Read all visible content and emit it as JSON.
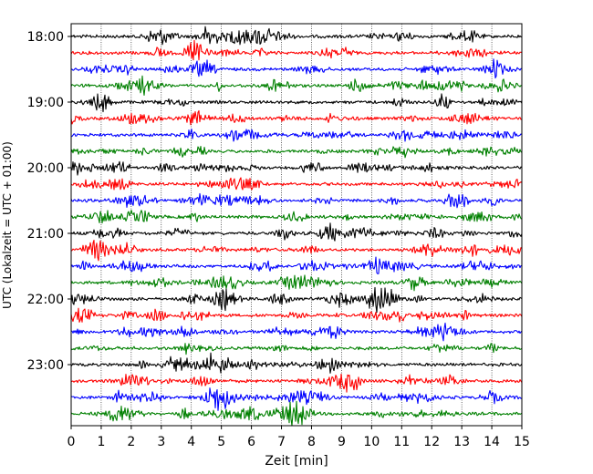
{
  "chart_data": {
    "type": "line",
    "title": "",
    "xlabel": "Zeit  [min]",
    "ylabel": "UTC (Lokalzeit = UTC + 01:00)",
    "xlim": [
      0,
      15
    ],
    "x_ticks": [
      "0",
      "1",
      "2",
      "3",
      "4",
      "5",
      "6",
      "7",
      "8",
      "9",
      "10",
      "11",
      "12",
      "13",
      "14",
      "15"
    ],
    "y_ticks": [
      "18:00",
      "19:00",
      "20:00",
      "21:00",
      "22:00",
      "23:00"
    ],
    "grid": "vertical dotted lines at each minute",
    "trace_colors": [
      "#000000",
      "#ff0000",
      "#0000ff",
      "#008000"
    ],
    "trace_start_times": [
      "18:00",
      "18:15",
      "18:30",
      "18:45",
      "19:00",
      "19:15",
      "19:30",
      "19:45",
      "20:00",
      "20:15",
      "20:30",
      "20:45",
      "21:00",
      "21:15",
      "21:30",
      "21:45",
      "22:00",
      "22:15",
      "22:30",
      "22:45",
      "23:00",
      "23:15",
      "23:30",
      "23:45"
    ]
  }
}
